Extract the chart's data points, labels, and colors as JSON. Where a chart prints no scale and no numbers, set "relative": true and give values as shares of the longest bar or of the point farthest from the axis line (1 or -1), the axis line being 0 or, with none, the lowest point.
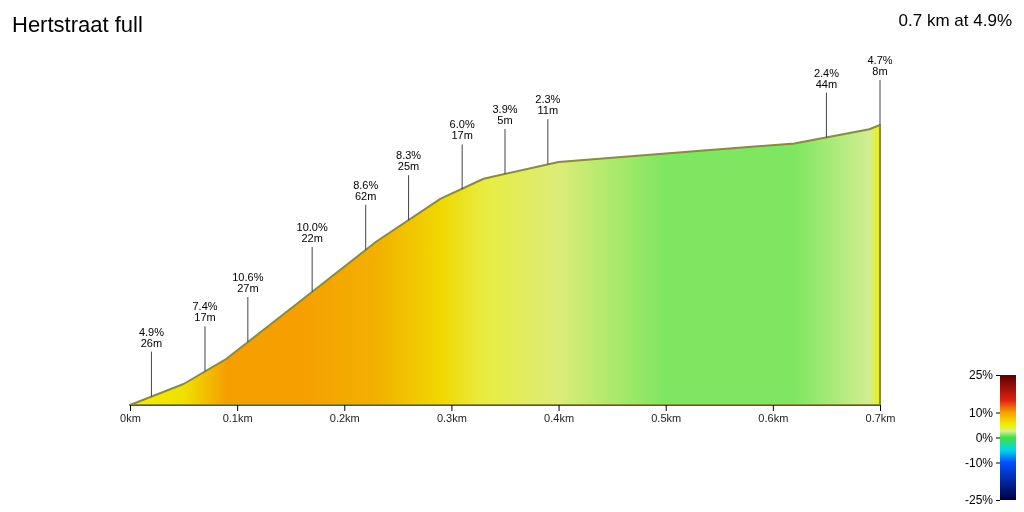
{
  "chart_data": {
    "type": "area",
    "title": "Hertstraat full",
    "subtitle": "0.7 km at 4.9%",
    "relative": true,
    "x": [
      0,
      0.05,
      0.09,
      0.16,
      0.23,
      0.29,
      0.33,
      0.4,
      0.5,
      0.62,
      0.69,
      0.7
    ],
    "series": [
      {
        "color": "#8a8a40",
        "values": [
          0,
          0.075,
          0.165,
          0.374,
          0.584,
          0.737,
          0.808,
          0.868,
          0.898,
          0.934,
          0.985,
          1
        ],
        "colors": [
          "#f0f000",
          "#f0e000",
          "#f5a000",
          "#f5a000",
          "#f2b000",
          "#f0d800",
          "#e8ec40",
          "#dcec78",
          "#7ee660",
          "#7ee660",
          "#d2ee90",
          "#eeee10"
        ]
      }
    ],
    "xlim": [
      0,
      0.7
    ],
    "xticks": [
      {
        "value": 0,
        "label": "0km"
      },
      {
        "value": 0.1,
        "label": "0.1km"
      },
      {
        "value": 0.2,
        "label": "0.2km"
      },
      {
        "value": 0.3,
        "label": "0.3km"
      },
      {
        "value": 0.4,
        "label": "0.4km"
      },
      {
        "value": 0.5,
        "label": "0.5km"
      },
      {
        "value": 0.6,
        "label": "0.6km"
      },
      {
        "value": 0.7,
        "label": "0.7km"
      }
    ],
    "clim": [
      -25,
      25
    ],
    "cticks": [
      {
        "value": 25,
        "label": "25%"
      },
      {
        "value": 10,
        "label": "10%"
      },
      {
        "value": 0,
        "label": "0%"
      },
      {
        "value": -10,
        "label": "-10%"
      },
      {
        "value": -25,
        "label": "-25%"
      }
    ],
    "annotations": [
      {
        "text": "4.9%\n26m",
        "x": 0.02,
        "y": 0.03
      },
      {
        "text": "7.4%\n17m",
        "x": 0.07,
        "y": 0.12
      },
      {
        "text": "10.6%\n27m",
        "x": 0.11,
        "y": 0.225
      },
      {
        "text": "10.0%\n22m",
        "x": 0.17,
        "y": 0.404
      },
      {
        "text": "8.6%\n62m",
        "x": 0.22,
        "y": 0.554
      },
      {
        "text": "8.3%\n25m",
        "x": 0.26,
        "y": 0.66
      },
      {
        "text": "6.0%\n17m",
        "x": 0.31,
        "y": 0.77
      },
      {
        "text": "3.9%\n5m",
        "x": 0.35,
        "y": 0.825
      },
      {
        "text": "2.3%\n11m",
        "x": 0.39,
        "y": 0.86
      },
      {
        "text": "2.4%\n44m",
        "x": 0.65,
        "y": 0.955
      },
      {
        "text": "4.7%\n8m",
        "x": 0.7,
        "y": 1
      }
    ]
  }
}
